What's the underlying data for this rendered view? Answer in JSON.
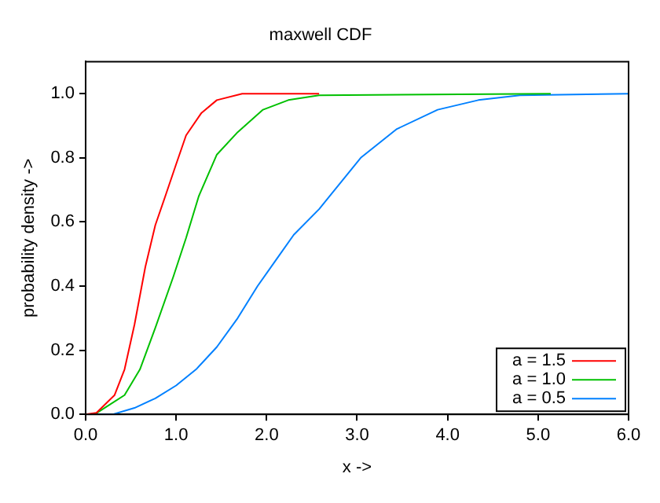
{
  "chart_data": {
    "type": "line",
    "title": "maxwell CDF",
    "xlabel": "x ->",
    "ylabel": "probability density ->",
    "xlim": [
      0,
      6
    ],
    "xticks": [
      {
        "value": 0,
        "label": "0.0"
      },
      {
        "value": 1,
        "label": "1.0"
      },
      {
        "value": 2,
        "label": "2.0"
      },
      {
        "value": 3,
        "label": "3.0"
      },
      {
        "value": 4,
        "label": "4.0"
      },
      {
        "value": 5,
        "label": "5.0"
      },
      {
        "value": 6,
        "label": "6.0"
      }
    ],
    "ylim": [
      0,
      1.1
    ],
    "yticks": [
      {
        "value": 0,
        "label": "0.0"
      },
      {
        "value": 0.2,
        "label": "0.2"
      },
      {
        "value": 0.4,
        "label": "0.4"
      },
      {
        "value": 0.6,
        "label": "0.6"
      },
      {
        "value": 0.8,
        "label": "0.8"
      },
      {
        "value": 1,
        "label": "1.0"
      }
    ],
    "grid": false,
    "legend": "bottom right",
    "marker": "none",
    "line_style": "solid",
    "series": [
      {
        "name": "a = 1.5",
        "color": "#ff0000",
        "x": [
          0.0,
          0.12,
          0.32,
          0.43,
          0.54,
          0.66,
          0.77,
          0.88,
          1.0,
          1.11,
          1.28,
          1.45,
          1.73,
          2.58
        ],
        "values": [
          0.0,
          0.005,
          0.06,
          0.14,
          0.28,
          0.46,
          0.59,
          0.68,
          0.78,
          0.87,
          0.94,
          0.98,
          1.0,
          1.0
        ]
      },
      {
        "name": "a = 1.0",
        "color": "#00c000",
        "x": [
          0.0,
          0.1,
          0.43,
          0.6,
          0.77,
          0.97,
          1.11,
          1.25,
          1.45,
          1.68,
          1.96,
          2.24,
          2.58,
          5.14
        ],
        "values": [
          0.0,
          0.0,
          0.06,
          0.14,
          0.27,
          0.43,
          0.55,
          0.68,
          0.81,
          0.88,
          0.95,
          0.98,
          0.995,
          1.0
        ]
      },
      {
        "name": "a = 0.5",
        "color": "#0080ff",
        "x": [
          0.0,
          0.3,
          0.54,
          0.77,
          1.0,
          1.22,
          1.45,
          1.68,
          1.9,
          2.1,
          2.3,
          2.58,
          3.04,
          3.44,
          3.89,
          4.34,
          4.8,
          6.0
        ],
        "values": [
          0.0,
          0.0,
          0.02,
          0.05,
          0.09,
          0.14,
          0.21,
          0.3,
          0.4,
          0.48,
          0.56,
          0.64,
          0.8,
          0.89,
          0.95,
          0.98,
          0.995,
          1.0
        ]
      }
    ]
  }
}
